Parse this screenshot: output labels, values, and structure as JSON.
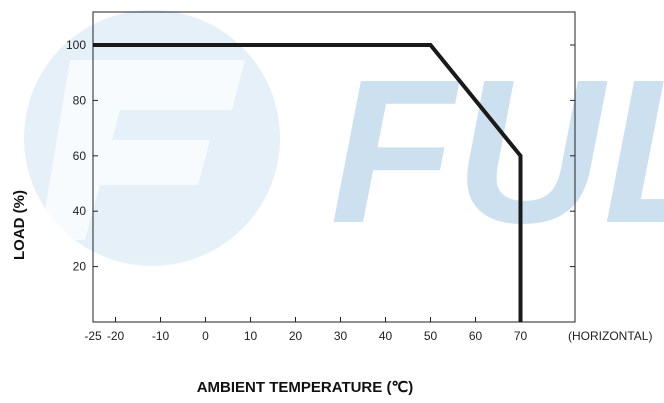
{
  "watermark": {
    "text": "FUL",
    "color_primary": "#6ea9d6",
    "color_secondary": "#c6ddee"
  },
  "chart_data": {
    "type": "line",
    "title": "",
    "xlabel": "AMBIENT TEMPERATURE (℃)",
    "ylabel": "LOAD (%)",
    "x_extra_label": "(HORIZONTAL)",
    "xlim": [
      -25,
      80
    ],
    "ylim": [
      0,
      112
    ],
    "x_ticks": [
      -25,
      -20,
      -10,
      0,
      10,
      20,
      30,
      40,
      50,
      60,
      70
    ],
    "y_ticks": [
      20,
      40,
      60,
      80,
      100
    ],
    "grid": false,
    "series": [
      {
        "x": [
          -25,
          50,
          70,
          70
        ],
        "y": [
          100,
          100,
          60,
          0
        ],
        "color": "#1a1a1a"
      }
    ]
  }
}
